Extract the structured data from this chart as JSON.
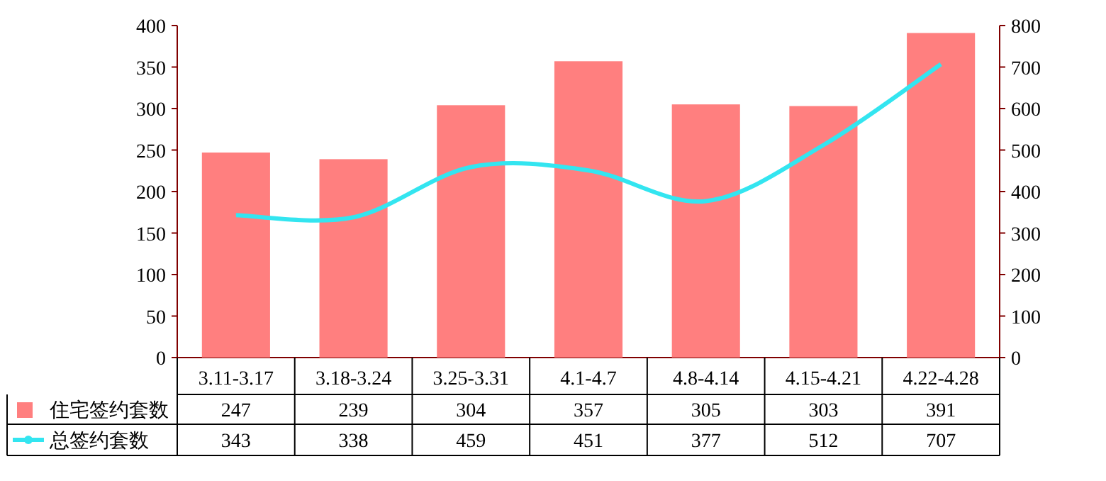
{
  "chart_data": {
    "type": "bar",
    "categories": [
      "3.11-3.17",
      "3.18-3.24",
      "3.25-3.31",
      "4.1-4.7",
      "4.8-4.14",
      "4.15-4.21",
      "4.22-4.28"
    ],
    "series": [
      {
        "name": "住宅签约套数",
        "color": "#ff7f7f",
        "values": [
          247,
          239,
          304,
          357,
          305,
          303,
          391
        ]
      },
      {
        "name": "总签约套数",
        "type": "line",
        "axis": "y2",
        "color": "#33e5f0",
        "values": [
          343,
          338,
          459,
          451,
          377,
          512,
          707
        ]
      }
    ],
    "ylim": [
      0,
      400
    ],
    "yticks": [
      0,
      50,
      100,
      150,
      200,
      250,
      300,
      350,
      400
    ],
    "y2lim": [
      0,
      800
    ],
    "y2ticks": [
      0,
      100,
      200,
      300,
      400,
      500,
      600,
      700,
      800
    ],
    "data_labels": true,
    "legend": "bottom",
    "grid": false,
    "marker": "none",
    "line_style": "solid"
  }
}
